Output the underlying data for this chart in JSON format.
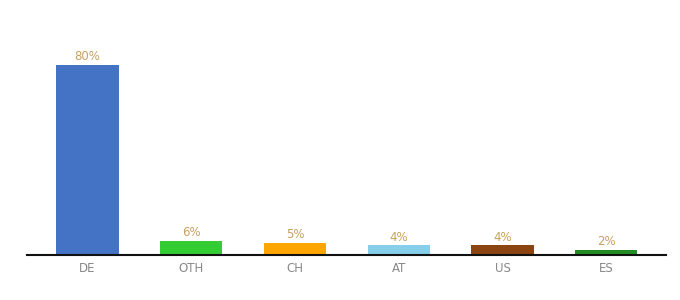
{
  "categories": [
    "DE",
    "OTH",
    "CH",
    "AT",
    "US",
    "ES"
  ],
  "values": [
    80,
    6,
    5,
    4,
    4,
    2
  ],
  "labels": [
    "80%",
    "6%",
    "5%",
    "4%",
    "4%",
    "2%"
  ],
  "bar_colors": [
    "#4472C4",
    "#33CC33",
    "#FFA500",
    "#87CEEB",
    "#8B4513",
    "#228B22"
  ],
  "background_color": "#ffffff",
  "label_color": "#c8a060",
  "ylim": [
    0,
    92
  ],
  "figsize": [
    6.8,
    3.0
  ],
  "dpi": 100,
  "bar_width": 0.6,
  "label_fontsize": 8.5,
  "tick_fontsize": 8.5,
  "tick_color": "#888888"
}
